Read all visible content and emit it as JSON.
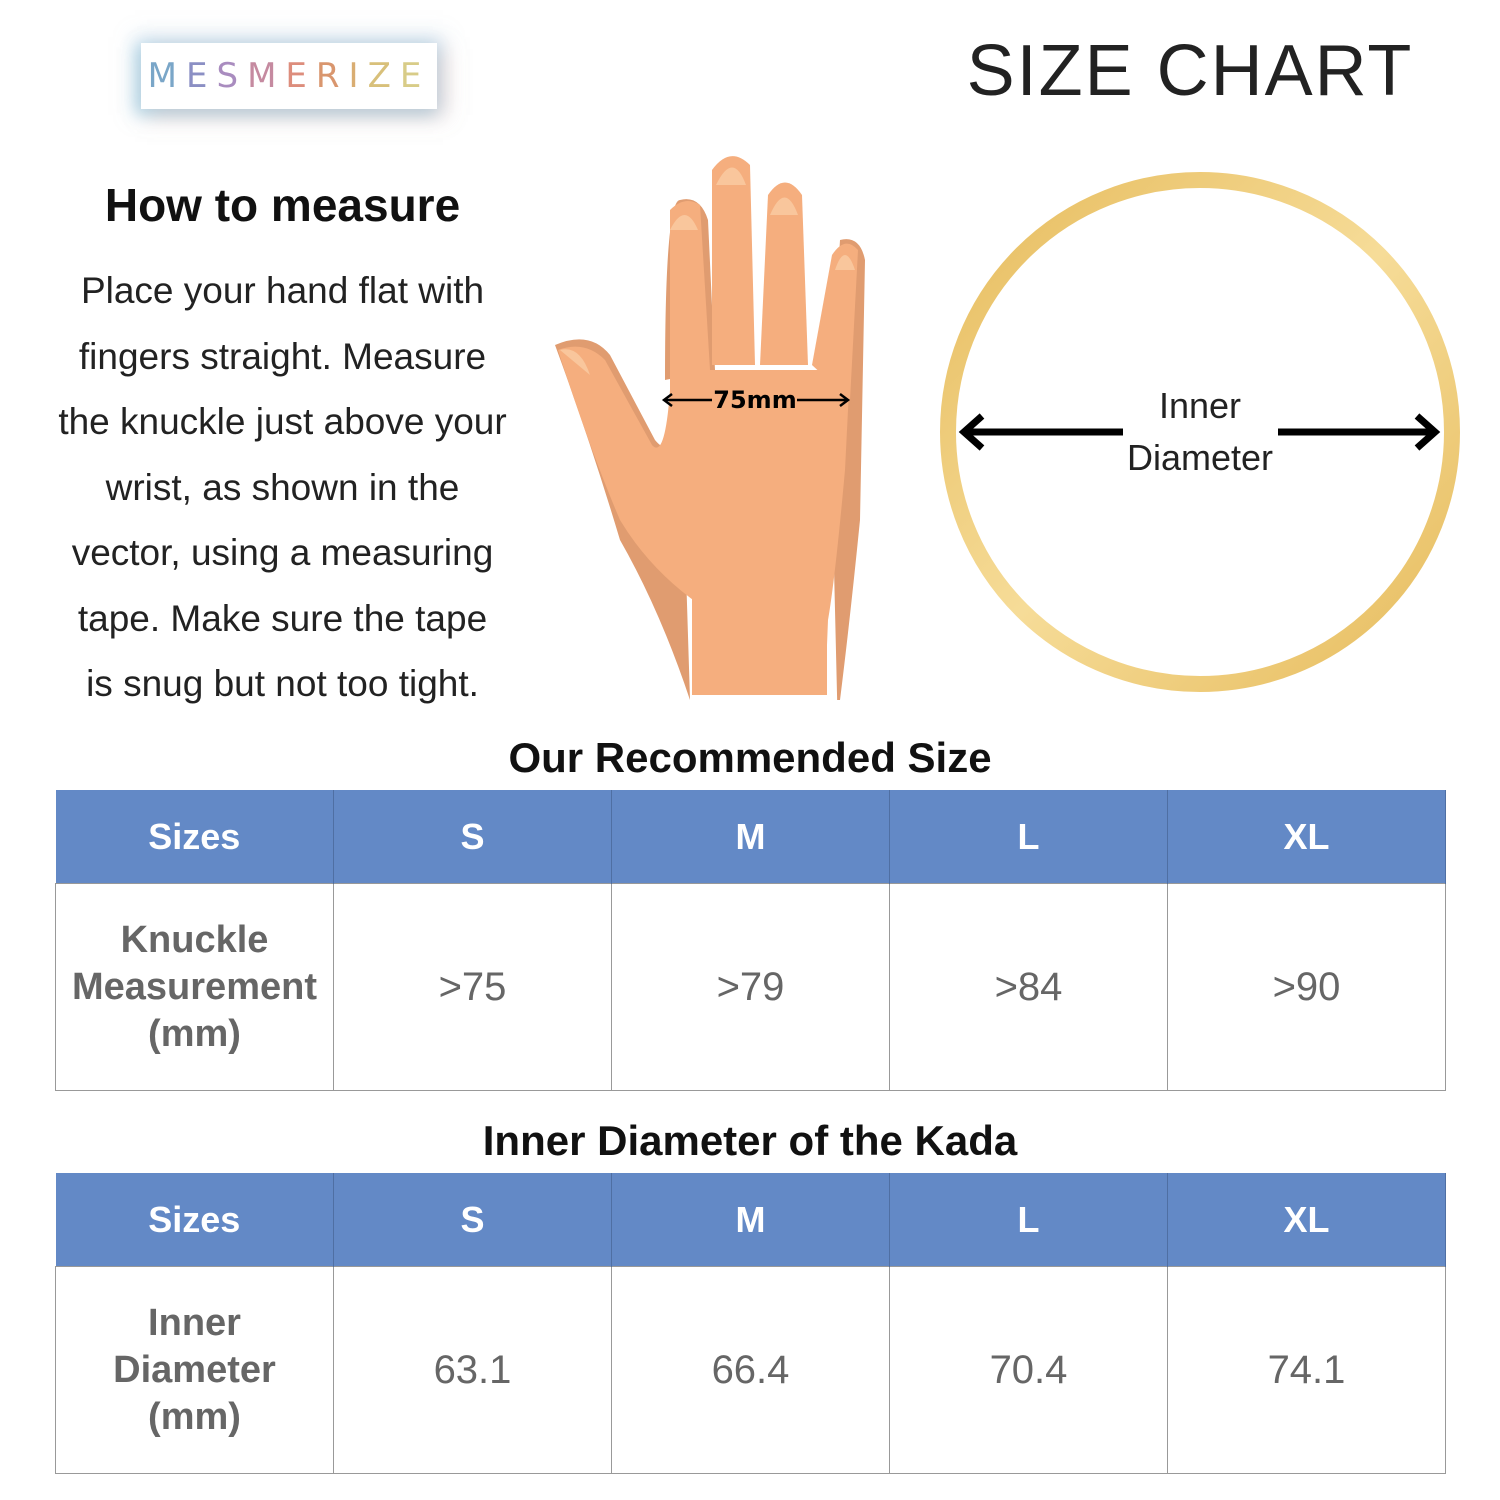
{
  "brand": {
    "logo_text": "MESMERIZE",
    "logo_colors": [
      "#7aa6c8",
      "#8b8fc4",
      "#a98cbf",
      "#c58aa0",
      "#dd8d7c",
      "#d9966e",
      "#d9ad72",
      "#d8c07a",
      "#d8cc88"
    ]
  },
  "header": {
    "title": "SIZE CHART"
  },
  "instructions": {
    "title": "How to measure",
    "lines": [
      "Place your hand flat with",
      "fingers straight. Measure",
      "the knuckle just above your",
      "wrist, as shown in the",
      "vector, using a measuring",
      "tape. Make sure the tape",
      "is snug but not too tight."
    ]
  },
  "hand_illustration": {
    "measurement_label": "75mm",
    "skin_color": "#f5ae7e",
    "shadow_color": "#e09c70"
  },
  "ring_illustration": {
    "label_line1": "Inner",
    "label_line2": "Diameter",
    "ring_color": "#e8c166"
  },
  "recommended": {
    "title": "Our Recommended Size",
    "headers": [
      "Sizes",
      "S",
      "M",
      "L",
      "XL"
    ],
    "row_label": [
      "Knuckle",
      "Measurement",
      "(mm)"
    ],
    "values": [
      ">75",
      ">79",
      ">84",
      ">90"
    ]
  },
  "diameter": {
    "title": "Inner Diameter of the Kada",
    "headers": [
      "Sizes",
      "S",
      "M",
      "L",
      "XL"
    ],
    "row_label": [
      "Inner",
      "Diameter",
      "(mm)"
    ],
    "values": [
      "63.1",
      "66.4",
      "70.4",
      "74.1"
    ]
  },
  "colors": {
    "table_header": "#6389c6",
    "cell_text": "#666666"
  }
}
